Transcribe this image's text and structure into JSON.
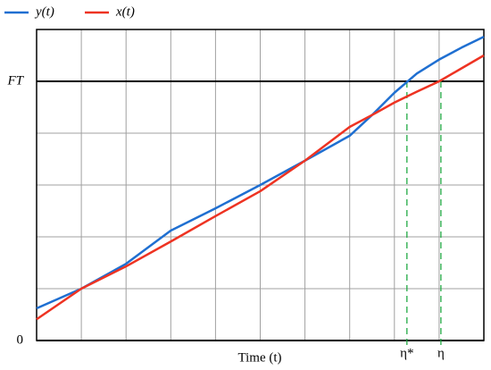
{
  "chart_data": {
    "type": "line",
    "xlabel": "Time (t)",
    "x": [
      0,
      1,
      2,
      3,
      4,
      5,
      6,
      7,
      7.5,
      8,
      8.5,
      9,
      9.5,
      10
    ],
    "series": [
      {
        "name": "y(t)",
        "color": "#1f6fd1",
        "values": [
          0.62,
          1.0,
          1.48,
          2.12,
          2.55,
          3.0,
          3.47,
          3.95,
          4.35,
          4.78,
          5.15,
          5.42,
          5.65,
          5.86
        ]
      },
      {
        "name": "x(t)",
        "color": "#ee3322",
        "values": [
          0.41,
          1.0,
          1.43,
          1.91,
          2.4,
          2.88,
          3.47,
          4.12,
          4.35,
          4.59,
          4.8,
          5.0,
          5.25,
          5.5
        ]
      }
    ],
    "xlim": [
      0,
      10
    ],
    "ylim": [
      0,
      6
    ],
    "yticks": [
      {
        "value": 0,
        "label": "0"
      },
      {
        "value": 5,
        "label": "FT"
      }
    ],
    "markers": [
      {
        "label": "η*",
        "x": 8.28,
        "color": "#22aa44"
      },
      {
        "label": "η",
        "x": 9.04,
        "color": "#22aa44"
      }
    ],
    "grid": true,
    "legend": "top-left"
  }
}
